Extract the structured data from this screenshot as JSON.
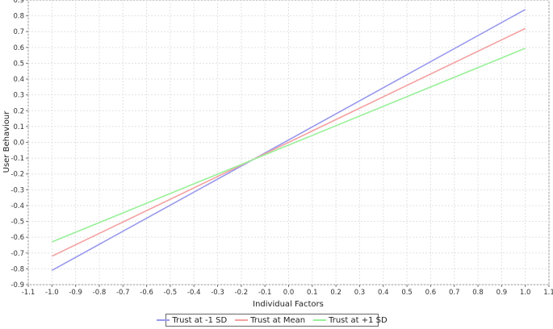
{
  "chart_data": {
    "type": "line",
    "xlabel": "Individual Factors",
    "ylabel": "User Behaviour",
    "xlim": [
      -1.1,
      1.1
    ],
    "ylim": [
      -0.9,
      0.9
    ],
    "xticks": [
      "-1.1",
      "-1.0",
      "-0.9",
      "-0.8",
      "-0.7",
      "-0.6",
      "-0.5",
      "-0.4",
      "-0.3",
      "-0.2",
      "-0.1",
      "0.0",
      "0.1",
      "0.2",
      "0.3",
      "0.4",
      "0.5",
      "0.6",
      "0.7",
      "0.8",
      "0.9",
      "1.0",
      "1.1"
    ],
    "yticks": [
      "0.9",
      "0.8",
      "0.7",
      "0.6",
      "0.5",
      "0.4",
      "0.3",
      "0.2",
      "0.1",
      "0.0",
      "-0.1",
      "-0.2",
      "-0.3",
      "-0.4",
      "-0.5",
      "-0.6",
      "-0.7",
      "-0.8",
      "-0.9"
    ],
    "grid": true,
    "legend_position": "bottom",
    "series": [
      {
        "name": "Trust at -1 SD",
        "color": "#9999ee",
        "x": [
          -1.0,
          1.0
        ],
        "y": [
          -0.81,
          0.84
        ]
      },
      {
        "name": "Trust at Mean",
        "color": "#f4a0a0",
        "x": [
          -1.0,
          1.0
        ],
        "y": [
          -0.72,
          0.72
        ]
      },
      {
        "name": "Trust at +1 SD",
        "color": "#99f099",
        "x": [
          -1.0,
          1.0
        ],
        "y": [
          -0.63,
          0.595
        ]
      }
    ]
  }
}
